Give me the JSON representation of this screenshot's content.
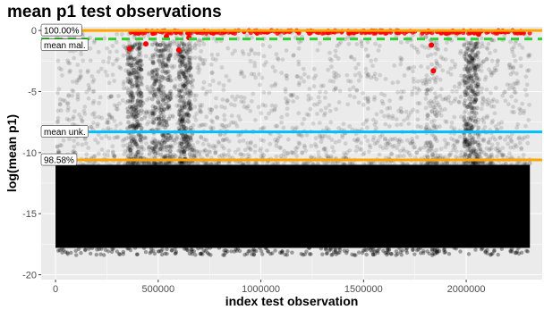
{
  "chart_data": {
    "type": "scatter",
    "title": "mean p1 test observations",
    "xlabel": "index test observation",
    "ylabel": "log(mean p1)",
    "xlim": [
      -70000,
      2370000
    ],
    "ylim": [
      -20.4,
      0.3
    ],
    "x_ticks": [
      0,
      500000,
      1000000,
      1500000,
      2000000
    ],
    "y_ticks": [
      0,
      -5,
      -10,
      -15,
      -20
    ],
    "grid": true,
    "background": "#ebebeb",
    "point_color": "#000000",
    "highlight_color": "#ff0000",
    "approx_density": {
      "x_range": [
        0,
        2310000
      ],
      "dense_band_y": [
        -17.8,
        -11.0
      ],
      "sparse_cloud_y": [
        -11.0,
        0.0
      ]
    },
    "highlight_points": [
      {
        "x": 360000,
        "y": -1.5
      },
      {
        "x": 440000,
        "y": -1.1
      },
      {
        "x": 540000,
        "y": -0.5
      },
      {
        "x": 600000,
        "y": -1.6
      },
      {
        "x": 650000,
        "y": -0.6
      },
      {
        "x": 1830000,
        "y": -1.2
      },
      {
        "x": 1840000,
        "y": -3.3
      },
      {
        "x": 1900000,
        "y": -0.2
      },
      {
        "x": 2060000,
        "y": -0.3
      }
    ],
    "reference_lines": [
      {
        "label": "100.00%",
        "y": 0.0,
        "color": "#ffa500",
        "style": "solid"
      },
      {
        "label": "mean mal.",
        "y": -0.7,
        "color": "#32cd32",
        "style": "dashed"
      },
      {
        "label": "mean unk.",
        "y": -8.3,
        "color": "#00bfff",
        "style": "solid"
      },
      {
        "label": "98.58%",
        "y": -10.6,
        "color": "#ffa500",
        "style": "solid"
      }
    ]
  }
}
